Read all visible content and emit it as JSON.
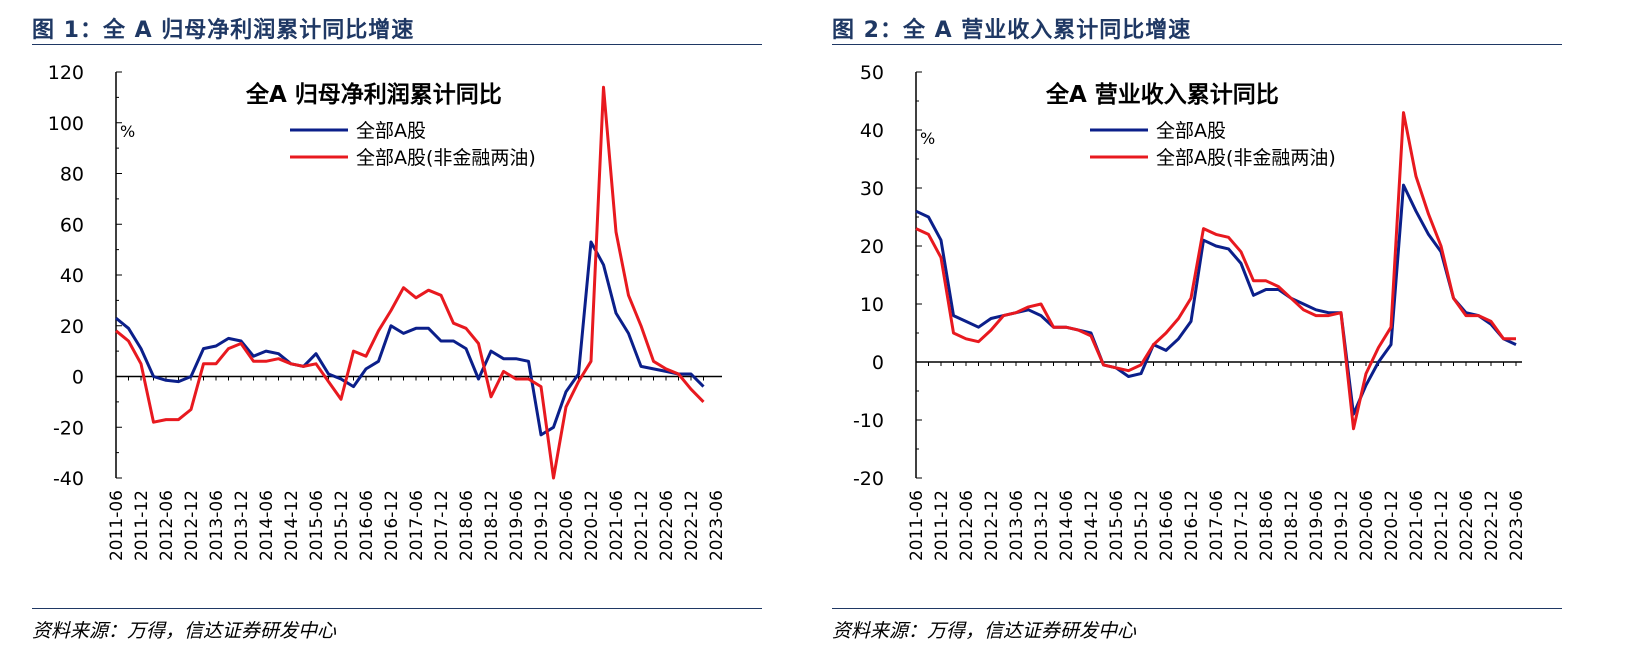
{
  "figures": [
    {
      "caption": "图 1：全 A 归母净利润累计同比增速",
      "source": "资料来源：万得，信达证券研发中心"
    },
    {
      "caption": "图 2：全 A 营业收入累计同比增速",
      "source": "资料来源：万得，信达证券研发中心"
    }
  ],
  "chart_data": [
    {
      "type": "line",
      "title": "全A  归母净利润累计同比",
      "ylabel": "%",
      "ylim": [
        -40,
        120
      ],
      "yticks": [
        -40,
        -20,
        0,
        20,
        40,
        60,
        80,
        100,
        120
      ],
      "xtick_labels": [
        "2011-06",
        "2011-12",
        "2012-06",
        "2012-12",
        "2013-06",
        "2013-12",
        "2014-06",
        "2014-12",
        "2015-06",
        "2015-12",
        "2016-06",
        "2016-12",
        "2017-06",
        "2017-12",
        "2018-06",
        "2018-12",
        "2019-06",
        "2019-12",
        "2020-06",
        "2020-12",
        "2021-06",
        "2021-12",
        "2022-06",
        "2022-12",
        "2023-06"
      ],
      "legend_position": "top-center",
      "grid": false,
      "x_quarter_start": "2011-06",
      "series": [
        {
          "name": "全部A股",
          "color": "#0b1f8a",
          "values": [
            23,
            19,
            11,
            0,
            -1.5,
            -2,
            0,
            11,
            12,
            15,
            14,
            8,
            10,
            9,
            5,
            4,
            9,
            1,
            -1,
            -4,
            3,
            6,
            20,
            17,
            19,
            19,
            14,
            14,
            11,
            -1,
            10,
            7,
            7,
            6,
            -23,
            -20,
            -6,
            1,
            53,
            44,
            25,
            17,
            4,
            3,
            2,
            1,
            1,
            -4
          ]
        },
        {
          "name": "全部A股(非金融两油)",
          "color": "#e8191f",
          "values": [
            18,
            14,
            5,
            -18,
            -17,
            -17,
            -13,
            5,
            5,
            11,
            13,
            6,
            6,
            7,
            5,
            4,
            5,
            -2,
            -9,
            10,
            8,
            18,
            26,
            35,
            31,
            34,
            32,
            21,
            19,
            13,
            -8,
            2,
            -1,
            -1,
            -4,
            -40,
            -12,
            -2,
            6,
            114,
            57,
            32,
            20,
            6,
            3,
            1,
            -5,
            -10
          ]
        }
      ]
    },
    {
      "type": "line",
      "title": "全A  营业收入累计同比",
      "ylabel": "%",
      "ylim": [
        -20,
        50
      ],
      "yticks": [
        -20,
        -10,
        0,
        10,
        20,
        30,
        40,
        50
      ],
      "xtick_labels": [
        "2011-06",
        "2011-12",
        "2012-06",
        "2012-12",
        "2013-06",
        "2013-12",
        "2014-06",
        "2014-12",
        "2015-06",
        "2015-12",
        "2016-06",
        "2016-12",
        "2017-06",
        "2017-12",
        "2018-06",
        "2018-12",
        "2019-06",
        "2019-12",
        "2020-06",
        "2020-12",
        "2021-06",
        "2021-12",
        "2022-06",
        "2022-12",
        "2023-06"
      ],
      "legend_position": "top-center",
      "grid": false,
      "x_quarter_start": "2011-06",
      "series": [
        {
          "name": "全部A股",
          "color": "#0b1f8a",
          "values": [
            26,
            25,
            21,
            8,
            7,
            6,
            7.5,
            8,
            8.5,
            9,
            8,
            6,
            6,
            5.5,
            5,
            -0.5,
            -1,
            -2.5,
            -2,
            3,
            2,
            4,
            7,
            21,
            20,
            19.5,
            17,
            11.5,
            12.5,
            12.5,
            11,
            10,
            9,
            8.5,
            8.5,
            -9,
            -4,
            0,
            3,
            30.5,
            26,
            22,
            19,
            11,
            8.5,
            8,
            6.5,
            4,
            3
          ]
        },
        {
          "name": "全部A股(非金融两油)",
          "color": "#e8191f",
          "values": [
            23,
            22,
            18,
            5,
            4,
            3.5,
            5.5,
            8,
            8.5,
            9.5,
            10,
            6,
            6,
            5.5,
            4.5,
            -0.5,
            -1,
            -1.5,
            -0.5,
            3,
            5,
            7.5,
            11,
            23,
            22,
            21.5,
            19,
            14,
            14,
            13,
            11,
            9,
            8,
            8,
            8.5,
            -11.5,
            -2,
            2.5,
            6,
            43,
            32,
            25.5,
            20,
            11,
            8,
            8,
            7,
            4,
            4
          ]
        }
      ]
    }
  ]
}
